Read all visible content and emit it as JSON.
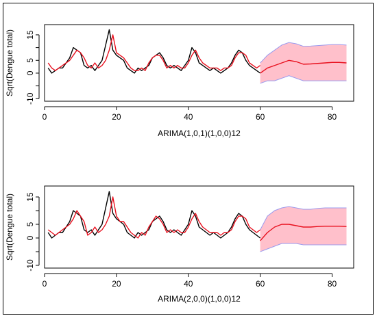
{
  "chart_data": [
    {
      "type": "line",
      "title": "",
      "xlabel": "ARIMA(1,0,1)(1,0,0)12",
      "ylabel": "Sqrt(Dengue total)",
      "xlim": [
        0,
        86
      ],
      "ylim": [
        -11,
        19
      ],
      "xticks": [
        0,
        20,
        40,
        60,
        80
      ],
      "yticks": [
        -10,
        -5,
        0,
        5,
        10,
        15
      ],
      "ytick_labels": [
        "-10",
        "",
        "0",
        "5",
        "",
        "15"
      ],
      "grid": false,
      "legend": "none",
      "series": [
        {
          "color": "#000000",
          "x": [
            1,
            2,
            3,
            4,
            5,
            6,
            7,
            8,
            9,
            10,
            11,
            12,
            13,
            14,
            15,
            16,
            17,
            18,
            19,
            20,
            21,
            22,
            23,
            24,
            25,
            26,
            27,
            28,
            29,
            30,
            31,
            32,
            33,
            34,
            35,
            36,
            37,
            38,
            39,
            40,
            41,
            42,
            43,
            44,
            45,
            46,
            47,
            48,
            49,
            50,
            51,
            52,
            53,
            54,
            55,
            56,
            57,
            58,
            59,
            60
          ],
          "y": [
            2,
            0,
            1,
            2,
            2,
            4,
            6,
            10,
            9,
            8,
            3,
            2,
            3,
            1,
            3,
            5,
            11,
            17,
            9,
            7,
            6,
            5,
            2,
            1,
            0,
            2,
            1,
            2,
            3,
            6,
            7,
            8,
            6,
            3,
            2,
            3,
            2,
            1,
            3,
            5,
            10,
            8,
            4,
            3,
            2,
            1,
            2,
            1,
            0,
            1,
            2,
            4,
            7,
            9,
            8,
            5,
            3,
            2,
            1,
            0
          ]
        },
        {
          "color": "#e8101e",
          "x": [
            1,
            2,
            3,
            4,
            5,
            6,
            7,
            8,
            9,
            10,
            11,
            12,
            13,
            14,
            15,
            16,
            17,
            18,
            19,
            20,
            21,
            22,
            23,
            24,
            25,
            26,
            27,
            28,
            29,
            30,
            31,
            32,
            33,
            34,
            35,
            36,
            37,
            38,
            39,
            40,
            41,
            42,
            43,
            44,
            45,
            46,
            47,
            48,
            49,
            50,
            51,
            52,
            53,
            54,
            55,
            56,
            57,
            58,
            59,
            60
          ],
          "y": [
            4,
            2,
            1,
            2,
            3,
            4,
            5,
            7,
            9,
            8,
            6,
            3,
            2,
            4,
            2,
            3,
            5,
            9,
            15,
            8,
            7,
            6,
            4,
            2,
            1,
            1,
            2,
            1,
            4,
            6,
            7,
            7,
            5,
            2,
            3,
            2,
            3,
            2,
            2,
            4,
            7,
            9,
            6,
            4,
            3,
            2,
            2,
            2,
            1,
            2,
            2,
            3,
            6,
            8,
            8,
            7,
            4,
            3,
            2,
            3
          ]
        },
        {
          "color": "#e8101e",
          "x": [
            60,
            62,
            64,
            66,
            68,
            70,
            72,
            74,
            76,
            78,
            80,
            82,
            84
          ],
          "y": [
            0,
            2,
            3,
            4,
            5,
            4.5,
            3.5,
            3.6,
            3.8,
            4,
            4.2,
            4.2,
            4
          ]
        }
      ],
      "interval": {
        "fill": "#ffc0cb",
        "edge": "#9a9aee",
        "x": [
          60,
          62,
          64,
          66,
          68,
          70,
          72,
          74,
          76,
          78,
          80,
          82,
          84
        ],
        "upper": [
          4,
          7,
          9,
          11,
          12,
          11.5,
          10.5,
          10.6,
          10.8,
          11,
          11.2,
          11.2,
          11
        ],
        "lower": [
          -4,
          -3,
          -3,
          -2,
          -1,
          -2,
          -3,
          -3,
          -3,
          -3,
          -3,
          -3,
          -3
        ]
      }
    },
    {
      "type": "line",
      "title": "",
      "xlabel": "ARIMA(2,0,0)(1,0,0)12",
      "ylabel": "Sqrt(Dengue total)",
      "xlim": [
        0,
        86
      ],
      "ylim": [
        -11,
        19
      ],
      "xticks": [
        0,
        20,
        40,
        60,
        80
      ],
      "yticks": [
        -10,
        -5,
        0,
        5,
        10,
        15
      ],
      "ytick_labels": [
        "-10",
        "",
        "0",
        "5",
        "",
        "15"
      ],
      "grid": false,
      "legend": "none",
      "series": [
        {
          "color": "#000000",
          "x": [
            1,
            2,
            3,
            4,
            5,
            6,
            7,
            8,
            9,
            10,
            11,
            12,
            13,
            14,
            15,
            16,
            17,
            18,
            19,
            20,
            21,
            22,
            23,
            24,
            25,
            26,
            27,
            28,
            29,
            30,
            31,
            32,
            33,
            34,
            35,
            36,
            37,
            38,
            39,
            40,
            41,
            42,
            43,
            44,
            45,
            46,
            47,
            48,
            49,
            50,
            51,
            52,
            53,
            54,
            55,
            56,
            57,
            58,
            59,
            60
          ],
          "y": [
            2,
            0,
            1,
            2,
            2,
            4,
            6,
            10,
            9,
            8,
            3,
            2,
            3,
            1,
            3,
            5,
            11,
            17,
            9,
            7,
            6,
            5,
            2,
            1,
            0,
            2,
            1,
            2,
            3,
            6,
            7,
            8,
            6,
            3,
            2,
            3,
            2,
            1,
            3,
            5,
            10,
            8,
            4,
            3,
            2,
            1,
            2,
            1,
            0,
            1,
            2,
            4,
            7,
            9,
            8,
            5,
            3,
            2,
            1,
            0
          ]
        },
        {
          "color": "#e8101e",
          "x": [
            1,
            2,
            3,
            4,
            5,
            6,
            7,
            8,
            9,
            10,
            11,
            12,
            13,
            14,
            15,
            16,
            17,
            18,
            19,
            20,
            21,
            22,
            23,
            24,
            25,
            26,
            27,
            28,
            29,
            30,
            31,
            32,
            33,
            34,
            35,
            36,
            37,
            38,
            39,
            40,
            41,
            42,
            43,
            44,
            45,
            46,
            47,
            48,
            49,
            50,
            51,
            52,
            53,
            54,
            55,
            56,
            57,
            58,
            59,
            60
          ],
          "y": [
            3,
            2,
            1,
            2,
            3,
            4,
            5,
            7,
            10,
            8,
            6,
            1,
            2,
            4,
            2,
            3,
            5,
            8,
            15,
            8,
            6,
            6,
            4,
            2,
            1,
            0,
            2,
            1,
            4,
            6,
            8,
            7,
            5,
            2,
            3,
            2,
            3,
            2,
            2,
            4,
            7,
            9,
            6,
            4,
            3,
            2,
            2,
            2,
            1,
            2,
            2,
            3,
            6,
            8,
            8,
            7,
            4,
            3,
            2,
            3
          ]
        },
        {
          "color": "#e8101e",
          "x": [
            60,
            62,
            64,
            66,
            68,
            70,
            72,
            74,
            76,
            78,
            80,
            82,
            84
          ],
          "y": [
            -1,
            2,
            4,
            5,
            5,
            4.5,
            4,
            4,
            4.2,
            4.3,
            4.3,
            4.3,
            4.2
          ]
        }
      ],
      "interval": {
        "fill": "#ffc0cb",
        "edge": "#9a9aee",
        "x": [
          60,
          62,
          64,
          66,
          68,
          70,
          72,
          74,
          76,
          78,
          80,
          82,
          84
        ],
        "upper": [
          3,
          8,
          10,
          11,
          11.5,
          11,
          10.5,
          10.5,
          10.8,
          11,
          11,
          11,
          11
        ],
        "lower": [
          -5,
          -4,
          -3,
          -2,
          -2,
          -2,
          -2.5,
          -2.5,
          -2.5,
          -2.5,
          -2.5,
          -2.5,
          -2.5
        ]
      }
    }
  ]
}
